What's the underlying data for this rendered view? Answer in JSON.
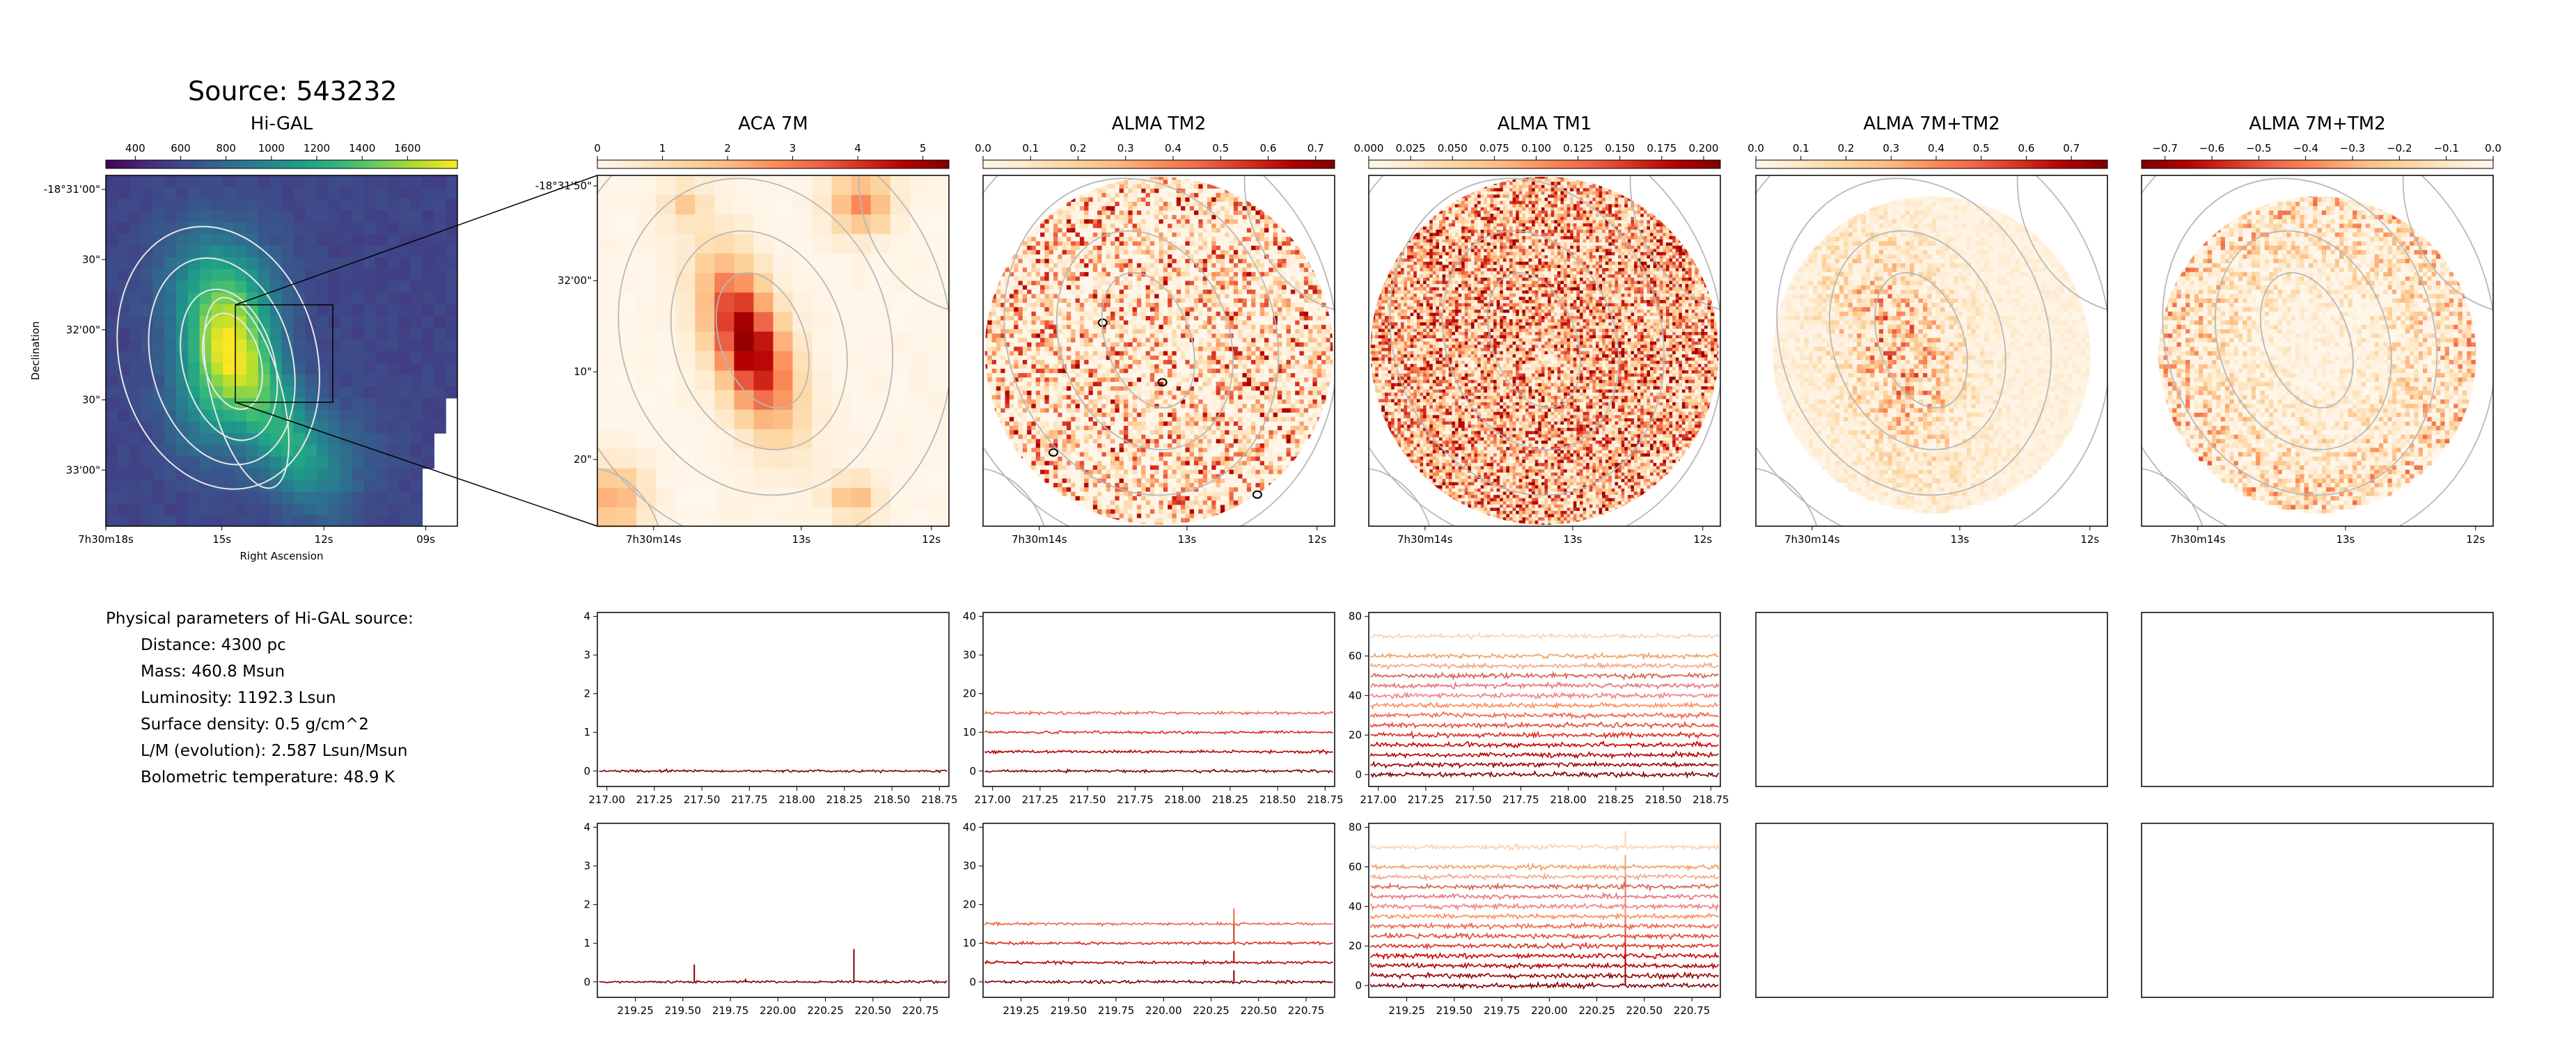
{
  "source_title": "Source: 543232",
  "physical_parameters": {
    "heading": "Physical parameters of Hi-GAL source:",
    "lines": [
      "Distance: 4300 pc",
      "Mass: 460.8 Msun",
      "Luminosity: 1192.3 Lsun",
      "Surface density: 0.5 g/cm^2",
      "L/M (evolution): 2.587 Lsun/Msun",
      "Bolometric temperature: 48.9 K"
    ]
  },
  "chart_data": [
    {
      "type": "heatmap",
      "title": "Hi-GAL",
      "colormap": "viridis",
      "colorbar_ticks": [
        "400",
        "600",
        "800",
        "1000",
        "1200",
        "1400",
        "1600"
      ],
      "colorbar_range": [
        270,
        1820
      ],
      "xlabel": "Right Ascension",
      "ylabel": "Declination",
      "xticks": [
        "7h30m18s",
        "15s",
        "12s",
        "09s"
      ],
      "yticks": [
        "-18°31'00\"",
        "30\"",
        "32'00\"",
        "30\"",
        "33'00\""
      ],
      "zoom_box": true,
      "contours": true
    },
    {
      "type": "heatmap",
      "title": "ACA 7M",
      "colormap": "OrRd",
      "colorbar_ticks": [
        "0",
        "1",
        "2",
        "3",
        "4",
        "5"
      ],
      "colorbar_range": [
        0,
        5.4
      ],
      "xticks": [
        "7h30m14s",
        "13s",
        "12s"
      ],
      "yticks": [
        "-18°31'50\"",
        "32'00\"",
        "10\"",
        "20\""
      ]
    },
    {
      "type": "heatmap",
      "title": "ALMA TM2",
      "colormap": "OrRd",
      "colorbar_ticks": [
        "0.0",
        "0.1",
        "0.2",
        "0.3",
        "0.4",
        "0.5",
        "0.6",
        "0.7"
      ],
      "colorbar_range": [
        0,
        0.74
      ],
      "xticks": [
        "7h30m14s",
        "13s",
        "12s"
      ]
    },
    {
      "type": "heatmap",
      "title": "ALMA TM1",
      "colormap": "OrRd",
      "colorbar_ticks": [
        "0.000",
        "0.025",
        "0.050",
        "0.075",
        "0.100",
        "0.125",
        "0.150",
        "0.175",
        "0.200"
      ],
      "colorbar_range": [
        0,
        0.21
      ],
      "xticks": [
        "7h30m14s",
        "13s",
        "12s"
      ]
    },
    {
      "type": "heatmap",
      "title": "ALMA 7M+TM2",
      "colormap": "OrRd",
      "colorbar_ticks": [
        "0.0",
        "0.1",
        "0.2",
        "0.3",
        "0.4",
        "0.5",
        "0.6",
        "0.7"
      ],
      "colorbar_range": [
        0,
        0.78
      ],
      "xticks": [
        "7h30m14s",
        "13s",
        "12s"
      ]
    },
    {
      "type": "heatmap",
      "title": "ALMA 7M+TM2",
      "colormap": "OrRd_r",
      "colorbar_ticks": [
        "−0.7",
        "−0.6",
        "−0.5",
        "−0.4",
        "−0.3",
        "−0.2",
        "−0.1",
        "0.0"
      ],
      "colorbar_range": [
        -0.75,
        0
      ],
      "xticks": [
        "7h30m14s",
        "13s",
        "12s"
      ]
    },
    {
      "type": "line",
      "panel": "ACA 7M spectrum (217-219 GHz)",
      "xlim": [
        216.95,
        218.8
      ],
      "ylim": [
        -0.4,
        4.1
      ],
      "xticks": [
        "217.00",
        "217.25",
        "217.50",
        "217.75",
        "218.00",
        "218.25",
        "218.50",
        "218.75"
      ],
      "yticks": [
        "0",
        "1",
        "2",
        "3",
        "4"
      ],
      "series": [
        {
          "offset": 0,
          "noise": 0.03,
          "color": "#7f0000",
          "spikes": []
        }
      ]
    },
    {
      "type": "line",
      "panel": "ALMA TM2 spectrum (217-219 GHz)",
      "xlim": [
        216.95,
        218.8
      ],
      "ylim": [
        -4,
        41
      ],
      "xticks": [
        "217.00",
        "217.25",
        "217.50",
        "217.75",
        "218.00",
        "218.25",
        "218.50",
        "218.75"
      ],
      "yticks": [
        "0",
        "10",
        "20",
        "30",
        "40"
      ],
      "series": [
        {
          "offset": 0,
          "noise": 0.35,
          "color": "#7f0000",
          "spikes": []
        },
        {
          "offset": 5,
          "noise": 0.35,
          "color": "#b30000",
          "spikes": []
        },
        {
          "offset": 10,
          "noise": 0.35,
          "color": "#d7301f",
          "spikes": []
        },
        {
          "offset": 15,
          "noise": 0.35,
          "color": "#ef6548",
          "spikes": []
        }
      ]
    },
    {
      "type": "line",
      "panel": "ALMA TM1 spectrum (217-219 GHz)",
      "xlim": [
        216.95,
        218.8
      ],
      "ylim": [
        -6,
        82
      ],
      "xticks": [
        "217.00",
        "217.25",
        "217.50",
        "217.75",
        "218.00",
        "218.25",
        "218.50",
        "218.75"
      ],
      "yticks": [
        "0",
        "20",
        "40",
        "60",
        "80"
      ],
      "series": [
        {
          "offset": 0,
          "noise": 1.1,
          "color": "#7f0000",
          "spikes": []
        },
        {
          "offset": 5,
          "noise": 1.1,
          "color": "#990000",
          "spikes": []
        },
        {
          "offset": 10,
          "noise": 1.1,
          "color": "#b30000",
          "spikes": []
        },
        {
          "offset": 15,
          "noise": 1.1,
          "color": "#cc0000",
          "spikes": []
        },
        {
          "offset": 20,
          "noise": 1.1,
          "color": "#d7301f",
          "spikes": []
        },
        {
          "offset": 25,
          "noise": 1.1,
          "color": "#e34a33",
          "spikes": []
        },
        {
          "offset": 30,
          "noise": 1.1,
          "color": "#ef6548",
          "spikes": []
        },
        {
          "offset": 35,
          "noise": 1.1,
          "color": "#fc8d59",
          "spikes": []
        },
        {
          "offset": 40,
          "noise": 1.1,
          "color": "#f08080",
          "spikes": []
        },
        {
          "offset": 45,
          "noise": 1.1,
          "color": "#e8737a",
          "spikes": []
        },
        {
          "offset": 50,
          "noise": 1.1,
          "color": "#d6604d",
          "spikes": []
        },
        {
          "offset": 55,
          "noise": 1.1,
          "color": "#f4a582",
          "spikes": []
        },
        {
          "offset": 60,
          "noise": 1.1,
          "color": "#f0a060",
          "spikes": []
        },
        {
          "offset": 70,
          "noise": 1.1,
          "color": "#fdd0b0",
          "spikes": []
        }
      ]
    },
    {
      "type": "line",
      "panel": "empty spectrum panel",
      "empty": true
    },
    {
      "type": "line",
      "panel": "empty spectrum panel",
      "empty": true
    },
    {
      "type": "line",
      "panel": "ACA 7M spectrum (219-221 GHz)",
      "xlim": [
        219.05,
        220.9
      ],
      "ylim": [
        -0.4,
        4.1
      ],
      "xticks": [
        "219.25",
        "219.50",
        "219.75",
        "220.00",
        "220.25",
        "220.50",
        "220.75"
      ],
      "yticks": [
        "0",
        "1",
        "2",
        "3",
        "4"
      ],
      "series": [
        {
          "offset": 0,
          "noise": 0.03,
          "color": "#7f0000",
          "spikes": [
            [
              219.56,
              0.45
            ],
            [
              220.4,
              0.85
            ],
            [
              219.83,
              0.08
            ]
          ]
        }
      ]
    },
    {
      "type": "line",
      "panel": "ALMA TM2 spectrum (219-221 GHz)",
      "xlim": [
        219.05,
        220.9
      ],
      "ylim": [
        -4,
        41
      ],
      "xticks": [
        "219.25",
        "219.50",
        "219.75",
        "220.00",
        "220.25",
        "220.50",
        "220.75"
      ],
      "yticks": [
        "0",
        "10",
        "20",
        "30",
        "40"
      ],
      "series": [
        {
          "offset": 0,
          "noise": 0.35,
          "color": "#7f0000",
          "spikes": [
            [
              220.37,
              3
            ]
          ]
        },
        {
          "offset": 5,
          "noise": 0.35,
          "color": "#b30000",
          "spikes": [
            [
              220.37,
              3
            ]
          ]
        },
        {
          "offset": 10,
          "noise": 0.35,
          "color": "#d7301f",
          "spikes": [
            [
              220.37,
              6
            ]
          ]
        },
        {
          "offset": 15,
          "noise": 0.35,
          "color": "#ef6548",
          "spikes": [
            [
              220.37,
              4
            ]
          ]
        }
      ]
    },
    {
      "type": "line",
      "panel": "ALMA TM1 spectrum (219-221 GHz)",
      "xlim": [
        219.05,
        220.9
      ],
      "ylim": [
        -6,
        82
      ],
      "xticks": [
        "219.25",
        "219.50",
        "219.75",
        "220.00",
        "220.25",
        "220.50",
        "220.75"
      ],
      "yticks": [
        "0",
        "20",
        "40",
        "60",
        "80"
      ],
      "series": [
        {
          "offset": 0,
          "noise": 1.1,
          "color": "#7f0000",
          "spikes": [
            [
              220.4,
              6
            ]
          ]
        },
        {
          "offset": 5,
          "noise": 1.1,
          "color": "#990000",
          "spikes": [
            [
              220.4,
              6
            ]
          ]
        },
        {
          "offset": 10,
          "noise": 1.1,
          "color": "#b30000",
          "spikes": [
            [
              220.4,
              6
            ]
          ]
        },
        {
          "offset": 15,
          "noise": 1.1,
          "color": "#cc0000",
          "spikes": [
            [
              220.4,
              6
            ]
          ]
        },
        {
          "offset": 20,
          "noise": 1.1,
          "color": "#d7301f",
          "spikes": [
            [
              220.4,
              6
            ]
          ]
        },
        {
          "offset": 25,
          "noise": 1.1,
          "color": "#e34a33",
          "spikes": [
            [
              220.4,
              6
            ]
          ]
        },
        {
          "offset": 30,
          "noise": 1.1,
          "color": "#ef6548",
          "spikes": [
            [
              220.4,
              6
            ]
          ]
        },
        {
          "offset": 35,
          "noise": 1.1,
          "color": "#fc8d59",
          "spikes": [
            [
              220.4,
              6
            ]
          ]
        },
        {
          "offset": 40,
          "noise": 1.1,
          "color": "#f08080",
          "spikes": [
            [
              220.4,
              6
            ]
          ]
        },
        {
          "offset": 45,
          "noise": 1.1,
          "color": "#e8737a",
          "spikes": [
            [
              220.4,
              6
            ]
          ]
        },
        {
          "offset": 50,
          "noise": 1.1,
          "color": "#d6604d",
          "spikes": [
            [
              220.4,
              6
            ]
          ]
        },
        {
          "offset": 55,
          "noise": 1.1,
          "color": "#f4a582",
          "spikes": [
            [
              220.4,
              6
            ]
          ]
        },
        {
          "offset": 60,
          "noise": 1.1,
          "color": "#f0a060",
          "spikes": [
            [
              220.4,
              6
            ]
          ]
        },
        {
          "offset": 70,
          "noise": 1.1,
          "color": "#fdd0b0",
          "spikes": [
            [
              220.4,
              8
            ]
          ]
        }
      ]
    },
    {
      "type": "line",
      "panel": "empty spectrum panel",
      "empty": true
    },
    {
      "type": "line",
      "panel": "empty spectrum panel",
      "empty": true
    }
  ]
}
